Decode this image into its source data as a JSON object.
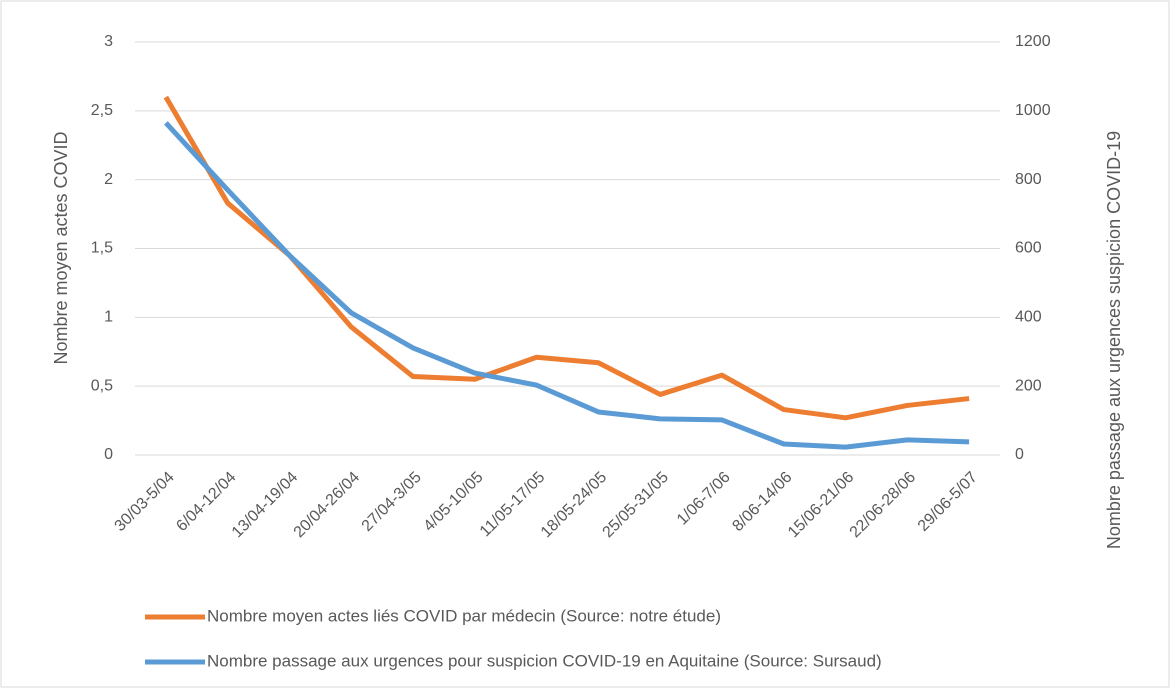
{
  "chart_data": {
    "type": "line",
    "categories": [
      "30/03-5/04",
      "6/04-12/04",
      "13/04-19/04",
      "20/04-26/04",
      "27/04-3/05",
      "4/05-10/05",
      "11/05-17/05",
      "18/05-24/05",
      "25/05-31/05",
      "1/06-7/06",
      "8/06-14/06",
      "15/06-21/06",
      "22/06-28/06",
      "29/06-5/07"
    ],
    "series": [
      {
        "name": "Nombre moyen actes liés COVID par médecin (Source: notre étude)",
        "color": "#ed7d31",
        "axis": "y",
        "values": [
          2.6,
          1.83,
          1.45,
          0.93,
          0.57,
          0.55,
          0.71,
          0.67,
          0.44,
          0.58,
          0.33,
          0.27,
          0.36,
          0.41
        ]
      },
      {
        "name": "Nombre passage aux urgences pour suspicion COVID-19 en Aquitaine (Source: Sursaud)",
        "color": "#5b9bd5",
        "axis": "y2",
        "values": [
          965,
          770,
          580,
          413,
          311,
          238,
          203,
          125,
          105,
          102,
          32,
          23,
          44,
          38
        ]
      }
    ],
    "y_label": "Nombre moyen actes COVID",
    "y2_label": "Nombre passage aux urgences suspicion COVID-19",
    "ylim": [
      0,
      3
    ],
    "yticks": [
      0,
      {
        "value": 0.5,
        "label": "0,5"
      },
      1,
      {
        "value": 1.5,
        "label": "1,5"
      },
      2,
      {
        "value": 2.5,
        "label": "2,5"
      },
      3
    ],
    "y2lim": [
      0,
      1200
    ],
    "y2ticks": [
      0,
      200,
      400,
      600,
      800,
      1000,
      1200
    ],
    "grid": true,
    "legend": "bottom"
  }
}
